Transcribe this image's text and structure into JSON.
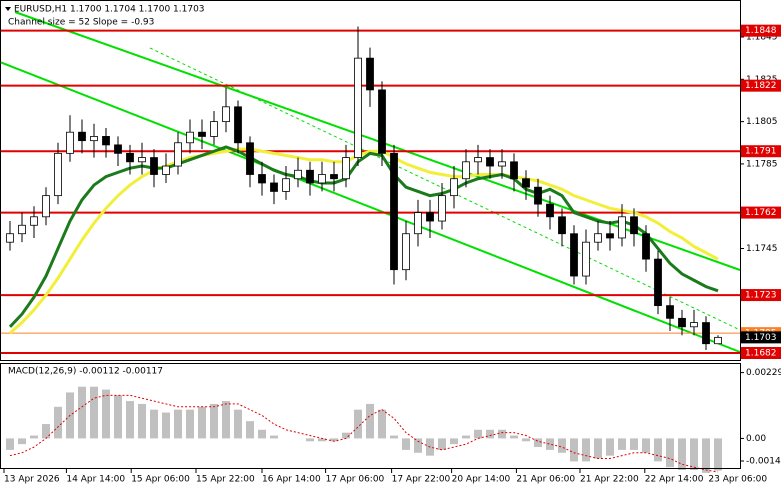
{
  "chart_data": [
    {
      "type": "candlestick",
      "title": "EURUSD,H1 1.1700 1.1704 1.1700 1.1703",
      "subtitle": "Channel size = 52 Slope = -0.93",
      "xlim": [
        -0.5,
        59.5
      ],
      "xticks": [
        {
          "value": -0.5,
          "label": "13 Apr 2026"
        },
        {
          "value": 4.7,
          "label": "14 Apr 14:00"
        },
        {
          "value": 10.1,
          "label": "15 Apr 06:00"
        },
        {
          "value": 15.5,
          "label": "15 Apr 22:00"
        },
        {
          "value": 21,
          "label": "16 Apr 14:00"
        },
        {
          "value": 26.3,
          "label": "17 Apr 06:00"
        },
        {
          "value": 31.8,
          "label": "17 Apr 22:00"
        },
        {
          "value": 36.8,
          "label": "20 Apr 14:00"
        },
        {
          "value": 42.2,
          "label": "21 Apr 06:00"
        },
        {
          "value": 47.5,
          "label": "21 Apr 22:00"
        },
        {
          "value": 52.9,
          "label": "22 Apr 14:00"
        },
        {
          "value": 58.2,
          "label": "23 Apr 06:00"
        }
      ],
      "ylim": [
        1.16923,
        1.18625
      ],
      "yticks": [
        1.1845,
        1.1825,
        1.1805,
        1.1785,
        1.1745
      ],
      "up_color": "#ffffff",
      "down_color": "#000000",
      "open": [
        1.1748,
        1.1752,
        1.1756,
        1.176,
        1.177,
        1.179,
        1.18,
        1.1796,
        1.1798,
        1.1794,
        1.179,
        1.1786,
        1.1788,
        1.178,
        1.1784,
        1.1795,
        1.18,
        1.1798,
        1.1805,
        1.1812,
        1.1795,
        1.178,
        1.1776,
        1.1772,
        1.1778,
        1.1782,
        1.1776,
        1.178,
        1.1778,
        1.1788,
        1.1835,
        1.182,
        1.179,
        1.1735,
        1.1752,
        1.1762,
        1.1758,
        1.177,
        1.1778,
        1.1786,
        1.1788,
        1.1784,
        1.1786,
        1.1778,
        1.1774,
        1.1766,
        1.176,
        1.1752,
        1.1732,
        1.1748,
        1.1752,
        1.175,
        1.176,
        1.1752,
        1.174,
        1.1718,
        1.1712,
        1.1708,
        1.171,
        1.17
      ],
      "high": [
        1.1758,
        1.1762,
        1.1765,
        1.1774,
        1.1795,
        1.1808,
        1.1806,
        1.1804,
        1.1802,
        1.1798,
        1.1794,
        1.1795,
        1.1792,
        1.179,
        1.18,
        1.1806,
        1.1806,
        1.181,
        1.1821,
        1.1815,
        1.1798,
        1.1786,
        1.178,
        1.1784,
        1.1788,
        1.1786,
        1.1786,
        1.1786,
        1.1794,
        1.185,
        1.184,
        1.1824,
        1.1794,
        1.1758,
        1.1768,
        1.1768,
        1.1776,
        1.1784,
        1.1792,
        1.1794,
        1.1792,
        1.1792,
        1.179,
        1.1782,
        1.1778,
        1.177,
        1.1764,
        1.1756,
        1.1754,
        1.1758,
        1.1758,
        1.1766,
        1.1764,
        1.1756,
        1.1744,
        1.1722,
        1.1716,
        1.1716,
        1.1713,
        1.1704
      ],
      "low": [
        1.1744,
        1.1748,
        1.175,
        1.1756,
        1.1766,
        1.1786,
        1.179,
        1.1788,
        1.1788,
        1.1784,
        1.178,
        1.178,
        1.1774,
        1.1776,
        1.178,
        1.179,
        1.1792,
        1.1794,
        1.18,
        1.179,
        1.1774,
        1.177,
        1.1766,
        1.1768,
        1.1774,
        1.177,
        1.1772,
        1.1772,
        1.1774,
        1.1784,
        1.1812,
        1.1784,
        1.1728,
        1.173,
        1.1746,
        1.175,
        1.1754,
        1.1764,
        1.1774,
        1.178,
        1.1778,
        1.1778,
        1.1772,
        1.1768,
        1.176,
        1.1754,
        1.1746,
        1.1728,
        1.1728,
        1.1744,
        1.1744,
        1.1746,
        1.1746,
        1.1734,
        1.1714,
        1.1706,
        1.1704,
        1.1704,
        1.1697,
        1.17
      ],
      "close": [
        1.1752,
        1.1756,
        1.176,
        1.177,
        1.179,
        1.18,
        1.1796,
        1.1798,
        1.1794,
        1.179,
        1.1786,
        1.1788,
        1.178,
        1.1784,
        1.1795,
        1.18,
        1.1798,
        1.1805,
        1.1812,
        1.1795,
        1.178,
        1.1776,
        1.1772,
        1.1778,
        1.1782,
        1.1776,
        1.178,
        1.1778,
        1.1788,
        1.1835,
        1.182,
        1.179,
        1.1735,
        1.1752,
        1.1762,
        1.1758,
        1.177,
        1.1778,
        1.1786,
        1.1788,
        1.1784,
        1.1786,
        1.1778,
        1.1774,
        1.1766,
        1.176,
        1.1752,
        1.1732,
        1.1748,
        1.1752,
        1.175,
        1.176,
        1.1752,
        1.174,
        1.1718,
        1.1712,
        1.1708,
        1.171,
        1.17,
        1.1703
      ],
      "series": [
        {
          "color": "#f2ef3a",
          "values": [
            1.1705,
            1.171,
            1.1716,
            1.1723,
            1.1731,
            1.174,
            1.1749,
            1.1757,
            1.1764,
            1.177,
            1.1775,
            1.1779,
            1.1782,
            1.1784,
            1.1786,
            1.1788,
            1.1789,
            1.179,
            1.1791,
            1.1792,
            1.1792,
            1.1791,
            1.179,
            1.1789,
            1.1788,
            1.1787,
            1.1787,
            1.1786,
            1.1786,
            1.1789,
            1.1791,
            1.1791,
            1.1788,
            1.1785,
            1.1783,
            1.1781,
            1.178,
            1.1779,
            1.1779,
            1.178,
            1.178,
            1.178,
            1.1779,
            1.1778,
            1.1777,
            1.1775,
            1.1773,
            1.177,
            1.1768,
            1.1766,
            1.1764,
            1.1763,
            1.1762,
            1.176,
            1.1757,
            1.1753,
            1.175,
            1.1746,
            1.1743,
            1.174
          ]
        },
        {
          "color": "#1b7a1b",
          "values": [
            1.1708,
            1.1714,
            1.1722,
            1.1732,
            1.1745,
            1.1758,
            1.1768,
            1.1775,
            1.1779,
            1.1781,
            1.1783,
            1.1784,
            1.1783,
            1.1783,
            1.1785,
            1.1787,
            1.1789,
            1.1791,
            1.1793,
            1.1791,
            1.1788,
            1.1785,
            1.1782,
            1.178,
            1.1779,
            1.1777,
            1.1776,
            1.1776,
            1.1778,
            1.1786,
            1.179,
            1.1789,
            1.178,
            1.1774,
            1.1772,
            1.177,
            1.1771,
            1.1773,
            1.1776,
            1.1778,
            1.1779,
            1.178,
            1.1778,
            1.1773,
            1.1771,
            1.1773,
            1.177,
            1.1762,
            1.176,
            1.1758,
            1.1757,
            1.1758,
            1.1756,
            1.1752,
            1.1745,
            1.1738,
            1.1733,
            1.173,
            1.1727,
            1.1725
          ]
        }
      ],
      "levels": [
        {
          "value": 1.1848,
          "color": "#e00000"
        },
        {
          "value": 1.1822,
          "color": "#e00000"
        },
        {
          "value": 1.1791,
          "color": "#e00000"
        },
        {
          "value": 1.1762,
          "color": "#e00000"
        },
        {
          "value": 1.1723,
          "color": "#e00000"
        },
        {
          "value": 1.1682,
          "color": "#e00000"
        },
        {
          "value": 1.1705,
          "color": "#ff7f27"
        }
      ],
      "last": {
        "value": 1.1703,
        "color": "#000000"
      }
    },
    {
      "type": "macd",
      "title": "MACD(12,26,9) -0.00112 -0.00117",
      "ylim": [
        -0.00103,
        0.00259
      ],
      "yticks": [
        0.00229,
        {
          "value": 0,
          "label": "0.00"
        },
        -0.0014
      ],
      "color": "#c0c0c0",
      "signal_color": "#e00000",
      "values": [
        -0.0004,
        -0.0002,
        0.0001,
        0.0005,
        0.0011,
        0.0016,
        0.0018,
        0.0018,
        0.0017,
        0.0015,
        0.0013,
        0.0012,
        0.001,
        0.0009,
        0.001,
        0.001,
        0.0011,
        0.0012,
        0.0013,
        0.001,
        0.0006,
        0.0003,
        0.0001,
        0.0,
        0.0,
        -0.0001,
        -0.0001,
        -0.0001,
        0.0002,
        0.001,
        0.0012,
        0.001,
        0.0001,
        -0.0004,
        -0.0005,
        -0.0006,
        -0.0004,
        -0.0002,
        0.0001,
        0.0003,
        0.0003,
        0.0003,
        0.0001,
        -0.0001,
        -0.0003,
        -0.0004,
        -0.0005,
        -0.0008,
        -0.0008,
        -0.0007,
        -0.0006,
        -0.0004,
        -0.0004,
        -0.0005,
        -0.0008,
        -0.001,
        -0.0011,
        -0.0011,
        -0.0012,
        -0.00112
      ],
      "signal": [
        -0.0006,
        -0.0005,
        -0.0003,
        0.0,
        0.0004,
        0.0008,
        0.0011,
        0.0014,
        0.0015,
        0.0015,
        0.0015,
        0.0014,
        0.0013,
        0.0012,
        0.0011,
        0.0011,
        0.0011,
        0.0011,
        0.0012,
        0.0012,
        0.001,
        0.0008,
        0.0005,
        0.0003,
        0.0002,
        0.0001,
        0.0,
        -0.0001,
        0.0,
        0.0004,
        0.0008,
        0.001,
        0.0007,
        0.0002,
        -0.0001,
        -0.0003,
        -0.0004,
        -0.0003,
        -0.0002,
        0.0,
        0.0001,
        0.0002,
        0.0002,
        0.0001,
        -0.0001,
        -0.0002,
        -0.0003,
        -0.0005,
        -0.0006,
        -0.0007,
        -0.0007,
        -0.0006,
        -0.0005,
        -0.0005,
        -0.0006,
        -0.0007,
        -0.0009,
        -0.001,
        -0.0011,
        -0.00117
      ]
    }
  ]
}
